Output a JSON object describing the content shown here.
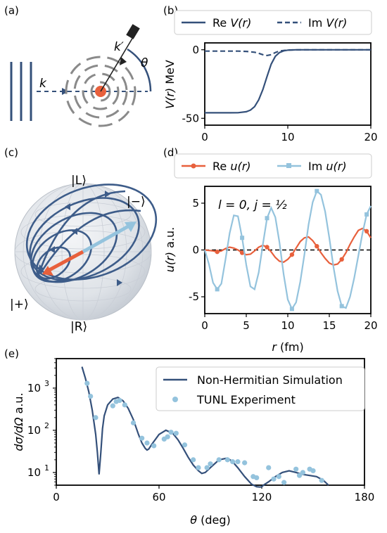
{
  "panels": {
    "a": {
      "label": "(a)",
      "k_label": "k",
      "kprime_label": "k′",
      "theta_label": "θ"
    },
    "b": {
      "label": "(b)"
    },
    "c": {
      "label": "(c)",
      "ket_L": "|L⟩",
      "ket_minus": "|−⟩",
      "ket_plus": "|+⟩",
      "ket_R": "|R⟩"
    },
    "d": {
      "label": "(d)",
      "annotation": "l = 0, j = ½"
    },
    "e": {
      "label": "(e)"
    }
  },
  "colors": {
    "navy": "#34507a",
    "orange": "#e8603c",
    "lightblue": "#94c3dd",
    "gray": "#8a8a8a"
  },
  "chart_data": [
    {
      "id": "b",
      "type": "line",
      "ylabel": "V(r) MeV",
      "xlim": [
        0,
        20
      ],
      "ylim": [
        -55,
        5
      ],
      "xticks": [
        0,
        10,
        20
      ],
      "yticks": [
        0,
        -50
      ],
      "legend": "top",
      "series": [
        {
          "name": "Re V(r)",
          "style": "solid",
          "x": [
            0,
            1,
            2,
            3,
            4,
            5,
            5.5,
            6,
            6.5,
            7,
            7.5,
            8,
            8.5,
            9,
            9.5,
            10,
            11,
            12,
            14,
            16,
            18,
            20
          ],
          "y": [
            -46,
            -46,
            -46,
            -46,
            -45.9,
            -45.2,
            -44,
            -41.5,
            -36.5,
            -29,
            -19.5,
            -10.5,
            -4.8,
            -2,
            -0.8,
            -0.3,
            -0.05,
            0,
            0,
            0,
            0,
            0
          ]
        },
        {
          "name": "Im V(r)",
          "style": "dashed",
          "x": [
            0,
            2,
            4,
            5,
            6,
            6.5,
            7,
            7.5,
            8,
            8.5,
            9,
            10,
            12,
            20
          ],
          "y": [
            -1,
            -1,
            -1,
            -1.2,
            -1.8,
            -2.6,
            -3.6,
            -4.2,
            -3.6,
            -2,
            -0.9,
            -0.2,
            0,
            0
          ]
        }
      ]
    },
    {
      "id": "d",
      "type": "line",
      "xlabel": "r (fm)",
      "ylabel": "u(r) a.u.",
      "xlim": [
        0,
        20
      ],
      "ylim": [
        -6.8,
        6.8
      ],
      "xticks": [
        0,
        5,
        10,
        15,
        20
      ],
      "yticks": [
        5,
        0,
        -5
      ],
      "legend": "top",
      "series": [
        {
          "name": "Re u(r)",
          "x": [
            0,
            0.5,
            1,
            1.5,
            2,
            2.5,
            3,
            3.5,
            4,
            4.5,
            5,
            5.5,
            6,
            6.5,
            7,
            7.5,
            8,
            8.5,
            9,
            9.5,
            10,
            10.5,
            11,
            11.5,
            12,
            12.5,
            13,
            13.5,
            14,
            14.5,
            15,
            15.5,
            16,
            16.5,
            17,
            17.5,
            18,
            18.5,
            19,
            19.5,
            20
          ],
          "y": [
            0,
            -0.05,
            -0.1,
            -0.2,
            -0.1,
            0.15,
            0.3,
            0.2,
            0,
            -0.3,
            -0.5,
            -0.45,
            -0.1,
            0.3,
            0.5,
            0.3,
            -0.2,
            -0.8,
            -1.2,
            -1.3,
            -1,
            -0.5,
            0.2,
            0.9,
            1.3,
            1.4,
            1,
            0.4,
            -0.3,
            -0.9,
            -1.4,
            -1.6,
            -1.5,
            -1,
            -0.3,
            0.6,
            1.4,
            2.1,
            2.3,
            2,
            1.3
          ]
        },
        {
          "name": "Im u(r)",
          "x": [
            0,
            0.5,
            1,
            1.5,
            2,
            2.5,
            3,
            3.5,
            4,
            4.5,
            5,
            5.5,
            6,
            6.5,
            7,
            7.5,
            8,
            8.5,
            9,
            9.5,
            10,
            10.5,
            11,
            11.5,
            12,
            12.5,
            13,
            13.5,
            14,
            14.5,
            15,
            15.5,
            16,
            16.5,
            17,
            17.5,
            18,
            18.5,
            19,
            19.5,
            20
          ],
          "y": [
            0,
            -1.5,
            -3.5,
            -4.2,
            -3.6,
            -1,
            1.8,
            3.7,
            3.6,
            1.3,
            -1.6,
            -3.9,
            -4.2,
            -2.4,
            0.6,
            3.4,
            4.5,
            3.5,
            0.8,
            -2.6,
            -5.3,
            -6.3,
            -5.6,
            -3.4,
            -0.5,
            2.7,
            5.1,
            6.3,
            5.9,
            4.1,
            1.3,
            -1.8,
            -4.4,
            -6,
            -6.2,
            -5,
            -3,
            -0.6,
            1.8,
            3.8,
            4.7
          ]
        }
      ]
    },
    {
      "id": "e",
      "type": "line",
      "log_y": true,
      "xlabel": "θ (deg)",
      "ylabel": "dσ/dΩ  a.u.",
      "xlim": [
        0,
        180
      ],
      "ylim": [
        5,
        5000
      ],
      "xticks": [
        0,
        60,
        120,
        180
      ],
      "yticks": [
        10,
        100,
        1000
      ],
      "legend": "top-right",
      "series": [
        {
          "name": "Non-Hermitian Simulation",
          "kind": "line",
          "x": [
            15,
            17,
            19,
            21,
            23,
            24,
            25,
            26,
            27,
            28,
            30,
            33,
            36,
            39,
            42,
            45,
            48,
            50,
            52,
            53,
            54,
            56,
            60,
            64,
            68,
            71,
            74,
            77,
            80,
            83,
            85,
            87,
            90,
            95,
            100,
            103,
            106,
            110,
            114,
            117,
            119,
            120,
            121,
            124,
            128,
            132,
            136,
            140,
            144,
            148,
            152,
            156,
            159
          ],
          "y": [
            3200,
            1700,
            820,
            300,
            80,
            30,
            9,
            30,
            110,
            220,
            400,
            550,
            600,
            500,
            330,
            180,
            80,
            50,
            37,
            34,
            36,
            48,
            80,
            100,
            85,
            60,
            38,
            23,
            15,
            11,
            9.5,
            10,
            13,
            20,
            22,
            18,
            13,
            8,
            5.3,
            4.6,
            4.5,
            4.6,
            5,
            6,
            8,
            10,
            11,
            10,
            9,
            8.5,
            8,
            6.5,
            5
          ]
        },
        {
          "name": "TUNL Experiment",
          "kind": "scatter",
          "x": [
            18,
            20,
            23,
            33,
            35,
            37,
            40,
            45,
            50,
            53,
            57,
            63,
            65,
            67,
            70,
            75,
            80,
            83,
            88,
            90,
            95,
            100,
            103,
            106,
            110,
            115,
            117,
            124,
            127,
            130,
            133,
            140,
            142,
            144,
            148,
            150,
            155
          ],
          "y": [
            1300,
            640,
            200,
            380,
            480,
            510,
            400,
            150,
            65,
            50,
            43,
            62,
            70,
            90,
            85,
            45,
            20,
            13,
            13,
            16,
            20,
            20,
            18,
            18,
            17,
            8,
            7.5,
            13,
            7,
            8,
            5.8,
            12,
            8.5,
            10,
            12,
            11,
            6.5
          ]
        }
      ]
    }
  ]
}
